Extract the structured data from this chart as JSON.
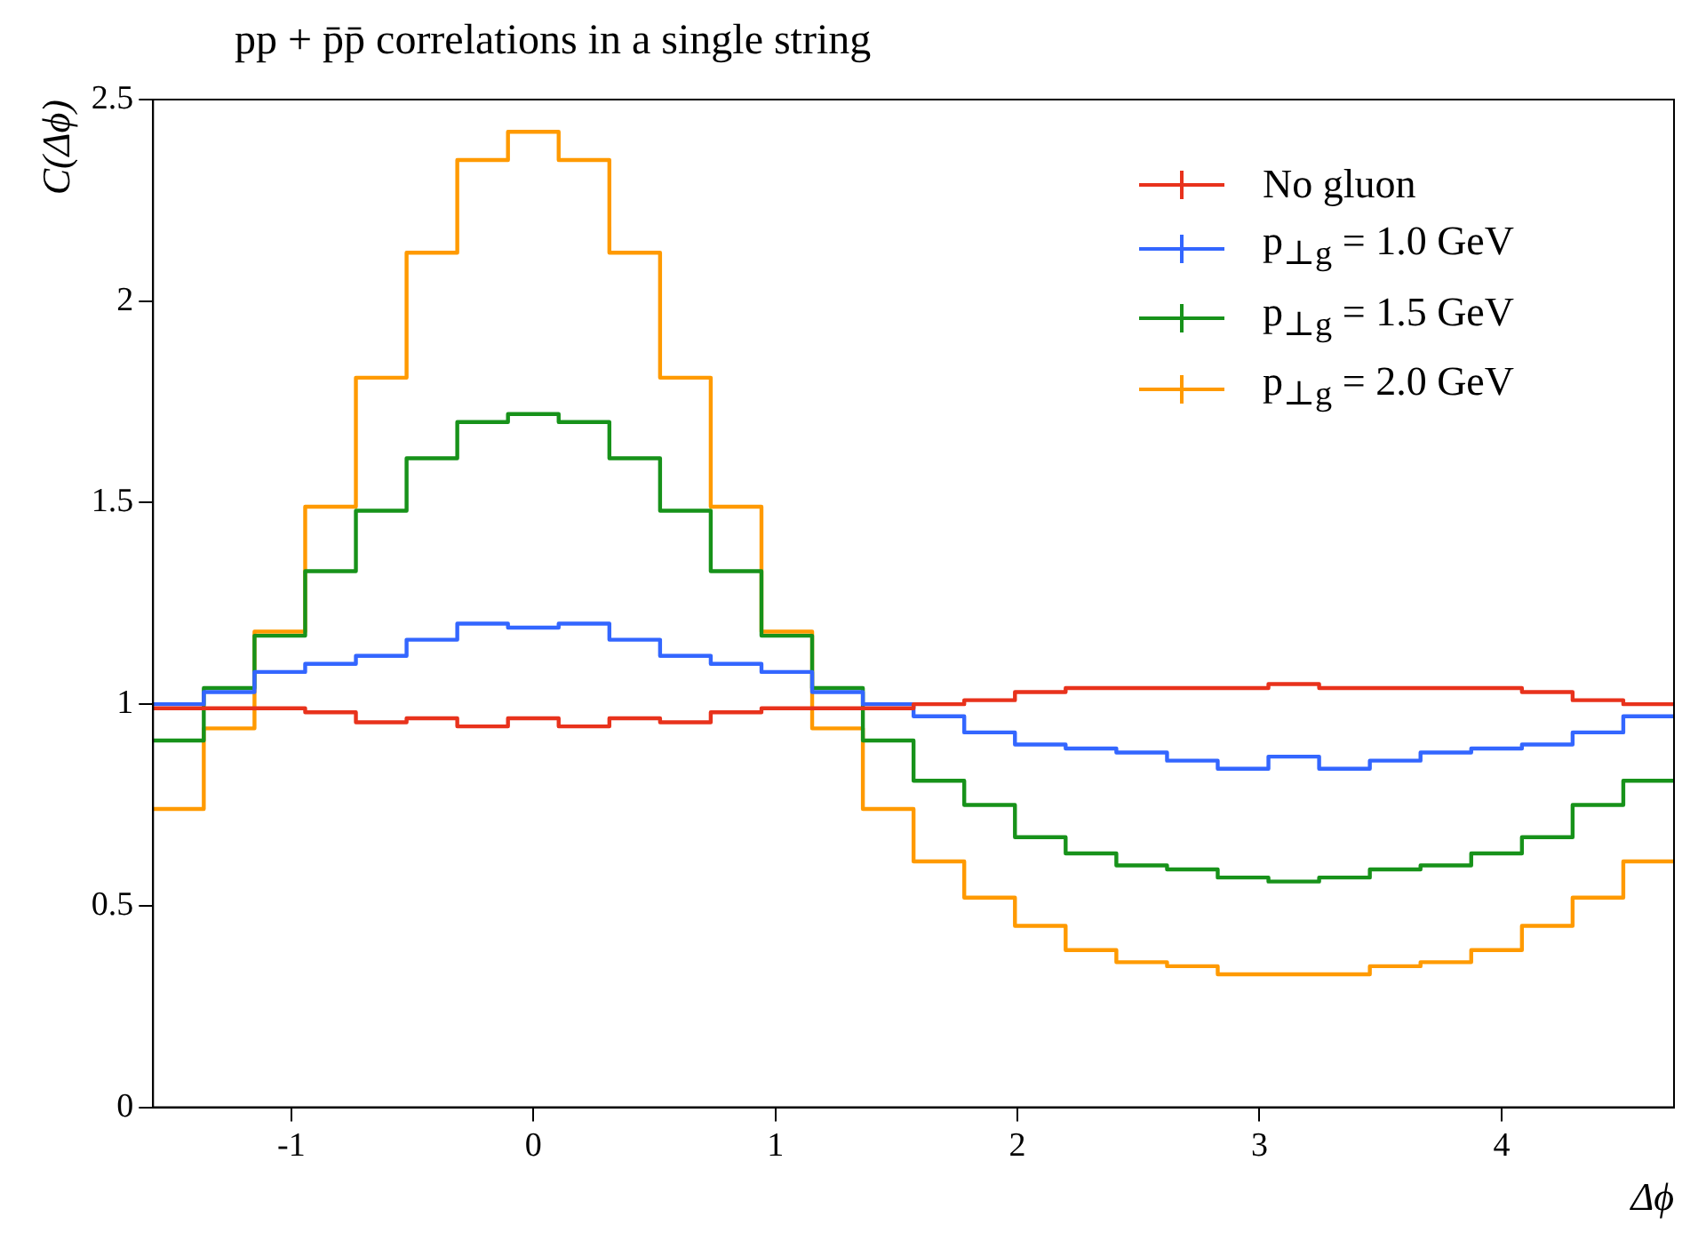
{
  "chart_data": {
    "type": "histogram",
    "title": "pp + p̄p̄ correlations in a single string",
    "xlabel": "Δϕ",
    "ylabel": "C(Δϕ)",
    "bins": [
      -1.5708,
      -1.3614,
      -1.1519,
      -0.9425,
      -0.733,
      -0.5236,
      -0.3142,
      -0.1047,
      0.1047,
      0.3142,
      0.5236,
      0.733,
      0.9425,
      1.1519,
      1.3614,
      1.5708,
      1.7802,
      1.9897,
      2.1991,
      2.4086,
      2.618,
      2.8274,
      3.0369,
      3.2463,
      3.4558,
      3.6652,
      3.8746,
      4.0841,
      4.2935,
      4.5029,
      4.7124
    ],
    "series": [
      {
        "name": "No gluon",
        "color": "#e8321c",
        "values": [
          0.99,
          0.99,
          0.99,
          0.98,
          0.955,
          0.965,
          0.945,
          0.965,
          0.945,
          0.965,
          0.955,
          0.98,
          0.99,
          0.99,
          0.99,
          1.0,
          1.01,
          1.03,
          1.04,
          1.04,
          1.04,
          1.04,
          1.05,
          1.04,
          1.04,
          1.04,
          1.04,
          1.03,
          1.01,
          1.0
        ]
      },
      {
        "name": "p$_{⊥g}$ = 1.0 GeV",
        "color": "#3366ff",
        "values": [
          1.0,
          1.03,
          1.08,
          1.1,
          1.12,
          1.16,
          1.2,
          1.19,
          1.2,
          1.16,
          1.12,
          1.1,
          1.08,
          1.03,
          1.0,
          0.97,
          0.93,
          0.9,
          0.89,
          0.88,
          0.86,
          0.84,
          0.87,
          0.84,
          0.86,
          0.88,
          0.89,
          0.9,
          0.93,
          0.97
        ]
      },
      {
        "name": "p$_{⊥g}$ = 1.5 GeV",
        "color": "#17921a",
        "values": [
          0.91,
          1.04,
          1.17,
          1.33,
          1.48,
          1.61,
          1.7,
          1.72,
          1.7,
          1.61,
          1.48,
          1.33,
          1.17,
          1.04,
          0.91,
          0.81,
          0.75,
          0.67,
          0.63,
          0.6,
          0.59,
          0.57,
          0.56,
          0.57,
          0.59,
          0.6,
          0.63,
          0.67,
          0.75,
          0.81
        ]
      },
      {
        "name": "p$_{⊥g}$ = 2.0 GeV",
        "color": "#ff9a00",
        "values": [
          0.74,
          0.94,
          1.18,
          1.49,
          1.81,
          2.12,
          2.35,
          2.42,
          2.35,
          2.12,
          1.81,
          1.49,
          1.18,
          0.94,
          0.74,
          0.61,
          0.52,
          0.45,
          0.39,
          0.36,
          0.35,
          0.33,
          0.33,
          0.33,
          0.35,
          0.36,
          0.39,
          0.45,
          0.52,
          0.61
        ]
      }
    ],
    "xlim": [
      -1.5708,
      4.7124
    ],
    "xticks": [
      -1,
      0,
      1,
      2,
      3,
      4
    ],
    "ylim": [
      0,
      2.5
    ],
    "yticks": [
      0,
      0.5,
      1,
      1.5,
      2,
      2.5
    ],
    "legend": "top right"
  }
}
